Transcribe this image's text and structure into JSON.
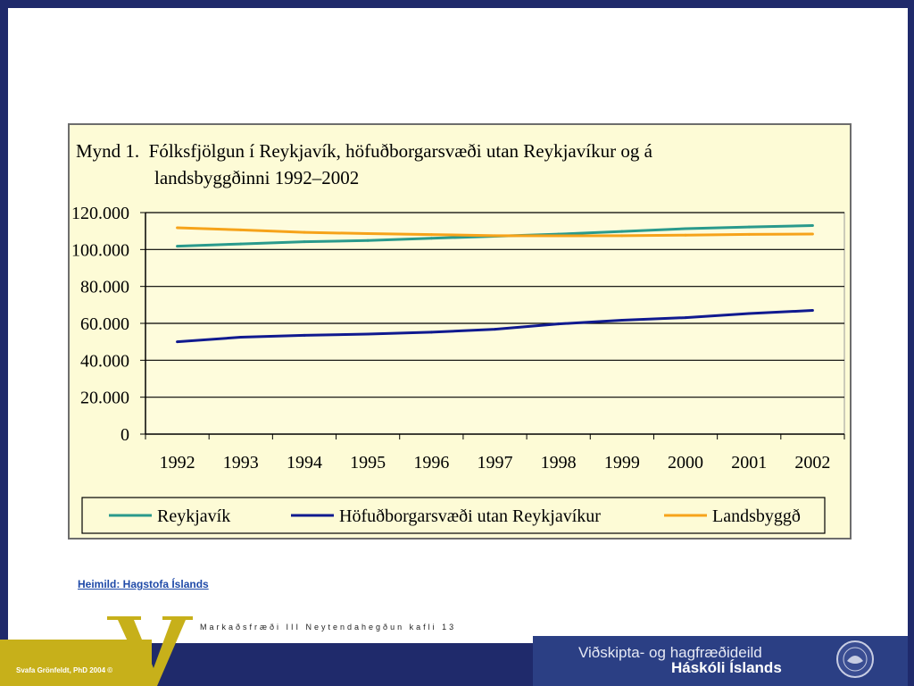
{
  "slide": {
    "source_link": "Heimild: Hagstofa Íslands",
    "course_caption": "Markaðsfræði III Neytendahegðun kafli 13",
    "author": "Svafa Grönfeldt, PhD 2004 ©",
    "department_line1": "Viðskipta- og hagfræðideild",
    "department_line2": "Háskóli Íslands"
  },
  "colors": {
    "frame": "#1f2a6b",
    "gold": "#c7b01a",
    "reykjavik": "#2a9a8c",
    "hofudborgarsvaedi": "#101a8f",
    "landsbyggd": "#f6a31a"
  },
  "chart_data": {
    "type": "line",
    "title_line1": "Mynd 1.  Fólksfjölgun í Reykjavík, höfuðborgarsvæði utan Reykjavíkur og á",
    "title_line2": "landsbyggðinni 1992–2002",
    "categories": [
      "1992",
      "1993",
      "1994",
      "1995",
      "1996",
      "1997",
      "1998",
      "1999",
      "2000",
      "2001",
      "2002"
    ],
    "ylim": [
      0,
      120000
    ],
    "yticks": [
      "0",
      "20.000",
      "40.000",
      "60.000",
      "80.000",
      "100.000",
      "120.000"
    ],
    "grid": true,
    "legend_position": "bottom",
    "series": [
      {
        "name": "Reykjavík",
        "color": "#2a9a8c",
        "values": [
          101800,
          103000,
          104200,
          104900,
          106100,
          107200,
          108300,
          109800,
          111300,
          112200,
          113000
        ]
      },
      {
        "name": "Höfuðborgarsvæði utan Reykjavíkur",
        "color": "#101a8f",
        "values": [
          50000,
          52500,
          53500,
          54200,
          55200,
          56800,
          59700,
          61700,
          63100,
          65300,
          67000
        ]
      },
      {
        "name": "Landsbyggð",
        "color": "#f6a31a",
        "values": [
          111800,
          110600,
          109300,
          108600,
          108100,
          107500,
          107400,
          107500,
          107800,
          108200,
          108400
        ]
      }
    ]
  }
}
